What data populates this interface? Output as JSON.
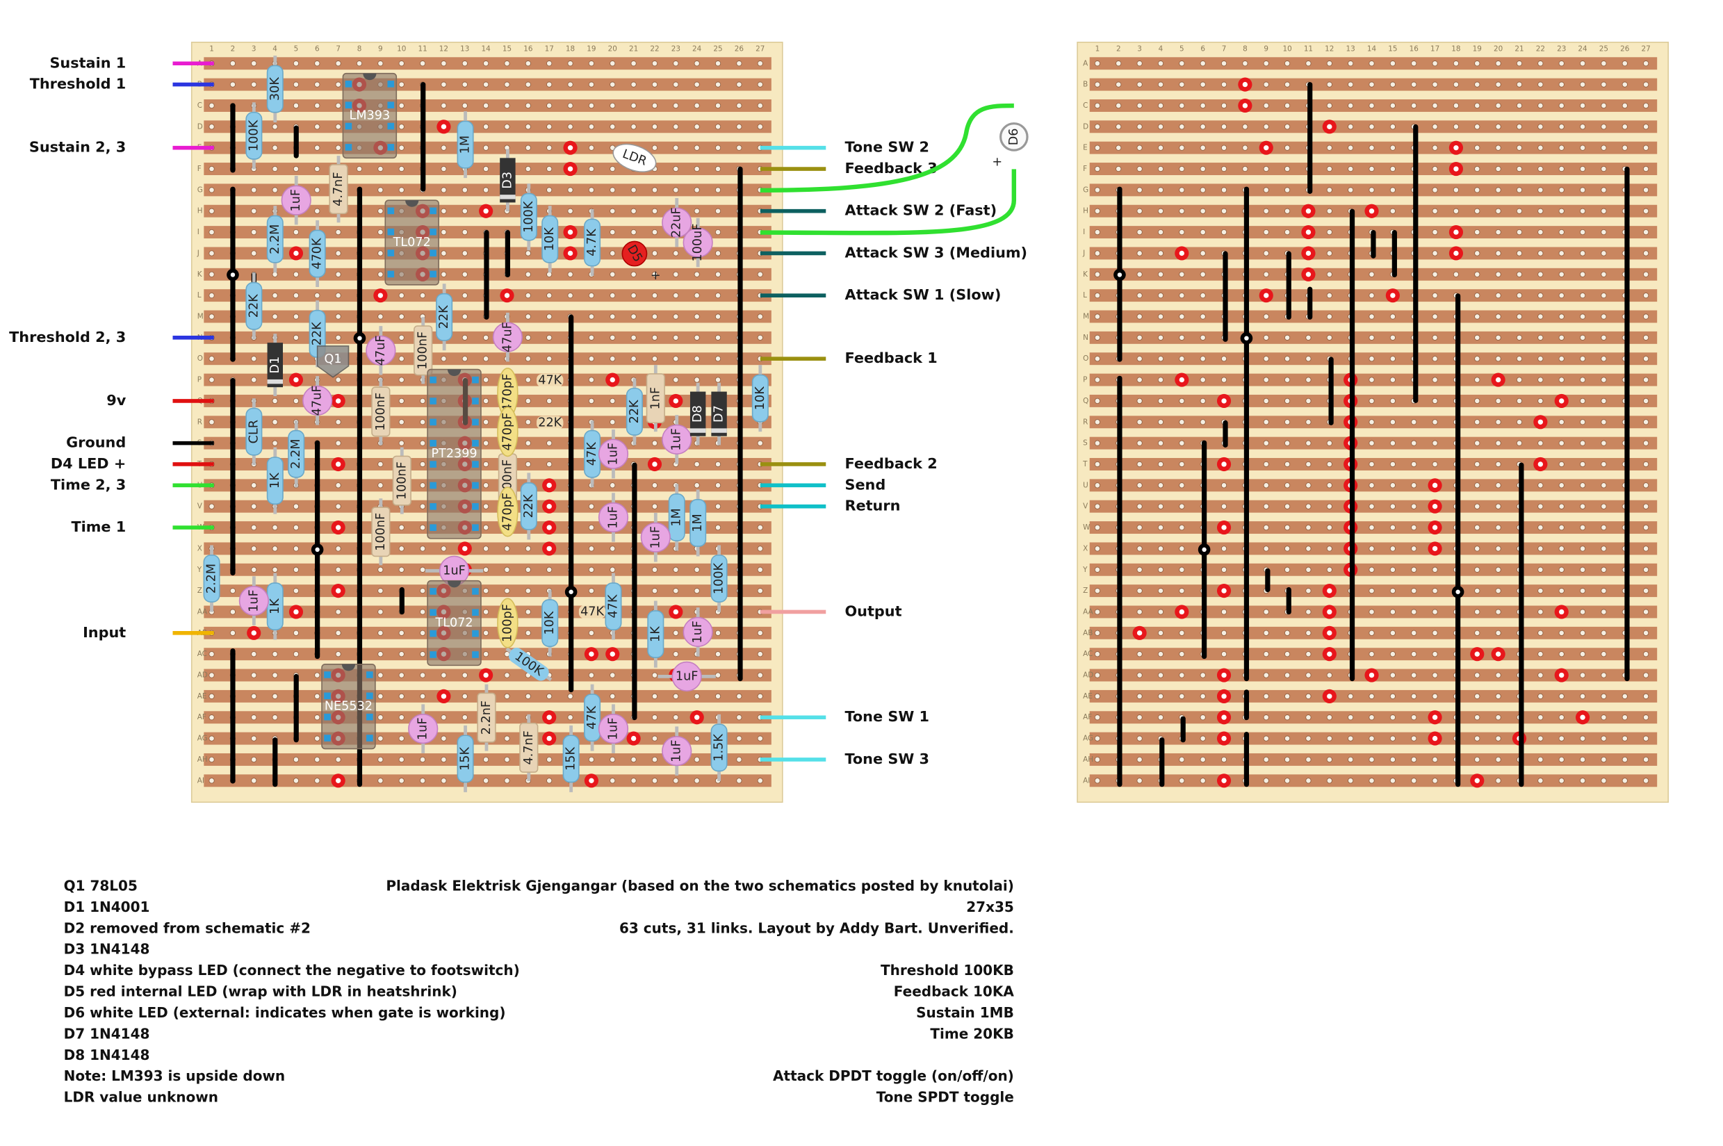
{
  "columns": [
    "1",
    "2",
    "3",
    "4",
    "5",
    "6",
    "7",
    "8",
    "9",
    "10",
    "11",
    "12",
    "13",
    "14",
    "15",
    "16",
    "17",
    "18",
    "19",
    "20",
    "21",
    "22",
    "23",
    "24",
    "25",
    "26",
    "27"
  ],
  "rows": [
    "A",
    "B",
    "C",
    "D",
    "E",
    "F",
    "G",
    "H",
    "I",
    "J",
    "K",
    "L",
    "M",
    "N",
    "O",
    "P",
    "Q",
    "R",
    "S",
    "T",
    "U",
    "V",
    "W",
    "X",
    "Y",
    "Z",
    "AA",
    "AB",
    "AC",
    "AD",
    "AE",
    "AF",
    "AG",
    "AH",
    "AI"
  ],
  "wires_left": [
    {
      "label": "Sustain 1",
      "color": "#e81cd0"
    },
    {
      "label": "Threshold 1",
      "color": "#2b35e0"
    },
    {
      "label": "Sustain 2, 3",
      "color": "#e81cd0"
    },
    {
      "label": "Threshold 2, 3",
      "color": "#2b35e0"
    },
    {
      "label": "9v",
      "color": "#e01010"
    },
    {
      "label": "Ground",
      "color": "#000000"
    },
    {
      "label": "D4 LED +",
      "color": "#e01010"
    },
    {
      "label": "Time 2, 3",
      "color": "#30e030"
    },
    {
      "label": "Time 1",
      "color": "#30e030"
    },
    {
      "label": "Input",
      "color": "#f0b400"
    }
  ],
  "wires_right": [
    {
      "label": "Tone SW 2",
      "color": "#55e0e8"
    },
    {
      "label": "Feedback 3",
      "color": "#9a9010"
    },
    {
      "label": "Attack SW 2 (Fast)",
      "color": "#0d6060"
    },
    {
      "label": "Attack SW 3 (Medium)",
      "color": "#0d6060"
    },
    {
      "label": "Attack SW 1 (Slow)",
      "color": "#0d6060"
    },
    {
      "label": "Feedback 1",
      "color": "#9a9010"
    },
    {
      "label": "Feedback 2",
      "color": "#9a9010"
    },
    {
      "label": "Send",
      "color": "#10c0c8"
    },
    {
      "label": "Return",
      "color": "#10c0c8"
    },
    {
      "label": "Output",
      "color": "#f0a0a0"
    },
    {
      "label": "Tone SW 1",
      "color": "#55e0e8"
    },
    {
      "label": "Tone SW 3",
      "color": "#55e0e8"
    }
  ],
  "components": [
    "30K",
    "100K",
    "1M",
    "2.2M",
    "470K",
    "22K",
    "22K",
    "22K",
    "100K",
    "10K",
    "4.7K",
    "CLR",
    "1K",
    "2.2M",
    "47K",
    "22K",
    "22K",
    "47K",
    "22K",
    "1M",
    "1M",
    "100K",
    "10K",
    "2.2M",
    "1K",
    "10K",
    "47K",
    "47K",
    "1K",
    "100K",
    "47K",
    "15K",
    "15K",
    "1.5K",
    "4.7nF",
    "100nF",
    "100nF",
    "100nF",
    "100nF",
    "100nF",
    "1nF",
    "2.2nF",
    "4.7nF",
    "470pF",
    "470pF",
    "470pF",
    "100pF",
    "1uF",
    "47uF",
    "47uF",
    "47uF",
    "22uF",
    "100uF",
    "1uF",
    "1uF",
    "1uF",
    "1uF",
    "1uF",
    "1uF",
    "1uF",
    "1uF",
    "1uF",
    "1uF",
    "1uF",
    "D3",
    "D1",
    "D8",
    "D7",
    "D5",
    "D6",
    "LDR",
    "Q1",
    "LM393",
    "TL072",
    "PT2399",
    "TL072",
    "NE5532"
  ],
  "polarity": [
    "+",
    "+"
  ],
  "notes_left": [
    "Q1 78L05",
    "D1 1N4001",
    "D2 removed from schematic #2",
    "D3 1N4148",
    "D4 white bypass LED (connect the negative to footswitch)",
    "D5 red internal LED (wrap with LDR in heatshrink)",
    "D6 white LED (external: indicates when gate is working)",
    "D7 1N4148",
    "D8 1N4148",
    "Note: LM393 is upside down",
    "LDR value unknown"
  ],
  "notes_right": [
    "Pladask Elektrisk Gjengangar (based on the two schematics posted by knutolai)",
    "27x35",
    "63 cuts, 31 links. Layout by Addy Bart. Unverified.",
    "Threshold 100KB",
    "Feedback 10KA",
    "Sustain 1MB",
    "Time 20KB",
    "Attack DPDT toggle (on/off/on)",
    "Tone SPDT toggle"
  ]
}
